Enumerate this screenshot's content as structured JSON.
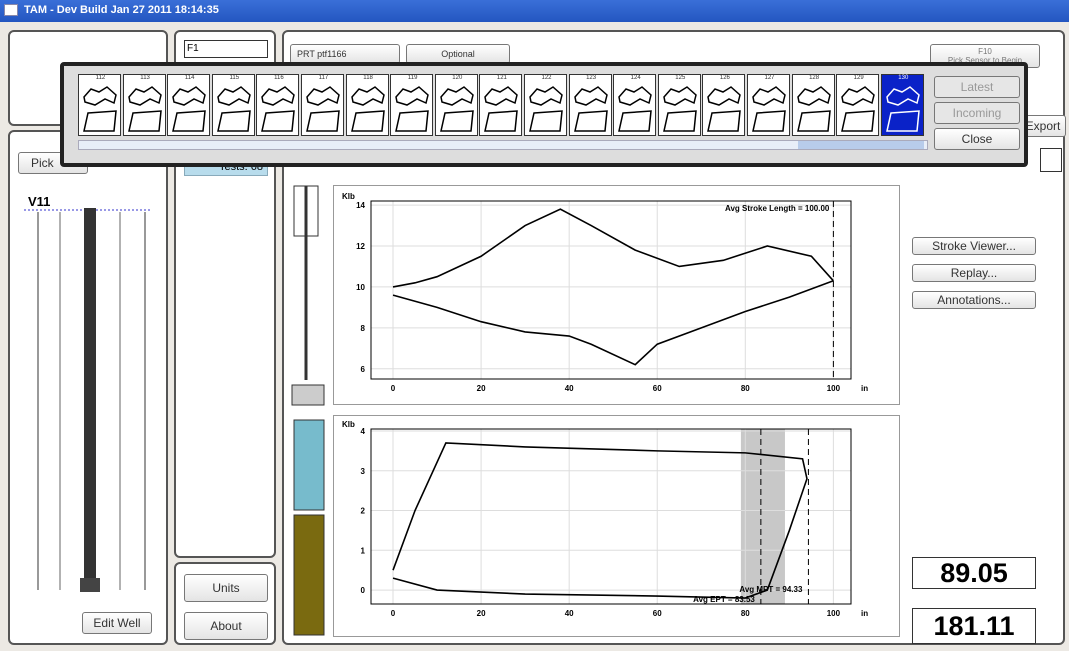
{
  "window": {
    "title": "TAM - Dev Build Jan 27 2011 18:14:35"
  },
  "toolbar": {
    "field": "F1",
    "sensor": "PRT ptf1166",
    "optional": "Optional",
    "hint_key": "F10",
    "hint": "Pick Sensor to Begin"
  },
  "popup": {
    "thumbnails": [
      "112",
      "113",
      "114",
      "115",
      "116",
      "117",
      "118",
      "119",
      "120",
      "121",
      "122",
      "123",
      "124",
      "125",
      "126",
      "127",
      "128",
      "129",
      "130"
    ],
    "selected": 18,
    "buttons": [
      "Latest",
      "Incoming",
      "Close"
    ]
  },
  "left": {
    "pick": "Pick",
    "well": "V11",
    "edit": "Edit Well"
  },
  "middle": {
    "tests": "Tests: 68",
    "units": "Units",
    "about": "About"
  },
  "right": {
    "export": "Export",
    "buttons": [
      "Stroke Viewer...",
      "Replay...",
      "Annotations..."
    ],
    "readouts": [
      "89.05",
      "181.11"
    ]
  },
  "chart_data": [
    {
      "type": "line",
      "y_label": "Klb",
      "x_label": "in",
      "xlim": [
        -5,
        104
      ],
      "ylim": [
        5.5,
        14.2
      ],
      "xticks": [
        0,
        20,
        40,
        60,
        80,
        100
      ],
      "yticks": [
        6,
        8,
        10,
        12,
        14
      ],
      "grid": true,
      "series": [
        {
          "color": "#000000",
          "x": [
            0,
            5,
            10,
            20,
            30,
            38,
            45,
            55,
            65,
            75,
            85,
            95,
            100
          ],
          "values": [
            10,
            10.2,
            10.5,
            11.5,
            13,
            13.8,
            13,
            11.8,
            11,
            11.3,
            12,
            11.5,
            10.3
          ]
        },
        {
          "color": "#000000",
          "x": [
            100,
            90,
            80,
            70,
            60,
            55,
            45,
            40,
            30,
            20,
            10,
            0
          ],
          "values": [
            10.3,
            9.5,
            8.8,
            8,
            7.2,
            6.2,
            7.2,
            7.6,
            7.8,
            8.3,
            9,
            9.6
          ]
        }
      ],
      "annotations": [
        {
          "value": 100,
          "label": "Avg Stroke Length = 100.00"
        }
      ]
    },
    {
      "type": "line",
      "y_label": "Klb",
      "x_label": "in",
      "xlim": [
        -5,
        104
      ],
      "ylim": [
        -0.35,
        4.05
      ],
      "xticks": [
        0,
        20,
        40,
        60,
        80,
        100
      ],
      "yticks": [
        0,
        1,
        2,
        3,
        4
      ],
      "grid": true,
      "shade": [
        79,
        89
      ],
      "series": [
        {
          "color": "#000000",
          "x": [
            0,
            5,
            12,
            30,
            60,
            80,
            93,
            94,
            90,
            85,
            80,
            60,
            30,
            10,
            0
          ],
          "values": [
            0.5,
            2,
            3.7,
            3.6,
            3.5,
            3.45,
            3.3,
            2.8,
            1.5,
            0,
            -0.2,
            -0.15,
            -0.1,
            0,
            0.3
          ]
        }
      ],
      "annotations": [
        {
          "value": 94.33,
          "label": "Avg MPT = 94.33"
        },
        {
          "value": 83.53,
          "label": "Avg EPT = 83.53"
        }
      ]
    }
  ]
}
